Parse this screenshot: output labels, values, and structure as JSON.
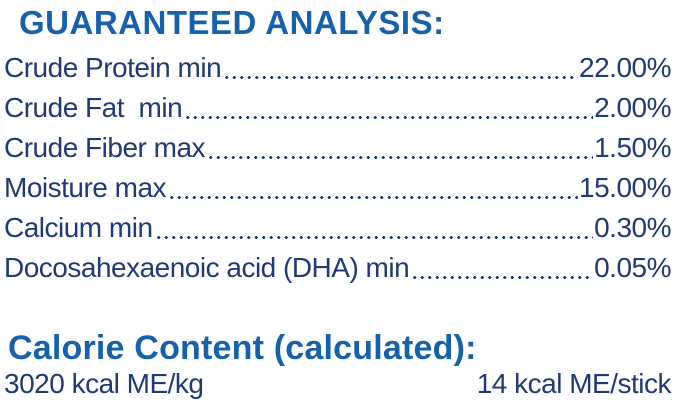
{
  "colors": {
    "header_blue": "#1561AC",
    "body_navy": "#1F3B73",
    "background": "#FFFFFF"
  },
  "guaranteed_analysis": {
    "title": "GUARANTEED ANALYSIS:",
    "rows": [
      {
        "label": "Crude Protein min",
        "value": "22.00%"
      },
      {
        "label": "Crude Fat  min",
        "value": "2.00%"
      },
      {
        "label": "Crude Fiber max",
        "value": "1.50%"
      },
      {
        "label": "Moisture max",
        "value": "15.00%"
      },
      {
        "label": "Calcium min",
        "value": "0.30%"
      },
      {
        "label": "Docosahexaenoic acid (DHA) min",
        "value": "0.05%"
      }
    ]
  },
  "calorie_content": {
    "title": "Calorie Content (calculated):",
    "left_value": "3020 kcal ME/kg",
    "right_value": "14 kcal ME/stick"
  }
}
